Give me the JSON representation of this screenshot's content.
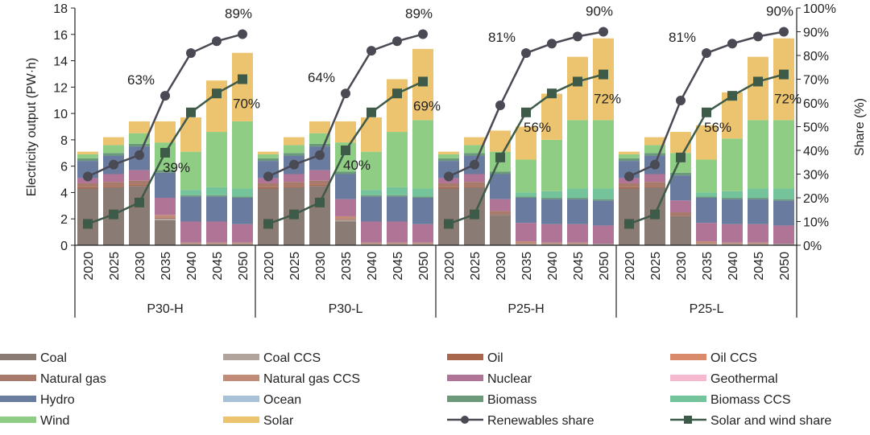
{
  "chart_data": {
    "type": "bar",
    "subtype": "stacked bar with line overlay on secondary axis",
    "ylabel": "Electricity output (PW·h)",
    "y2label": "Share (%)",
    "ylim": [
      0,
      18
    ],
    "yticks": [
      0,
      2,
      4,
      6,
      8,
      10,
      12,
      14,
      16,
      18
    ],
    "y2lim": [
      0,
      100
    ],
    "y2ticks": [
      "0%",
      "10%",
      "20%",
      "30%",
      "40%",
      "50%",
      "60%",
      "70%",
      "80%",
      "90%",
      "100%"
    ],
    "grid": false,
    "legend_position": "bottom",
    "years": [
      "2020",
      "2025",
      "2030",
      "2035",
      "2040",
      "2045",
      "2050"
    ],
    "technologies": [
      {
        "name": "Coal",
        "color": "#8a7b74"
      },
      {
        "name": "Coal CCS",
        "color": "#b1a49d"
      },
      {
        "name": "Oil",
        "color": "#a8674c"
      },
      {
        "name": "Oil CCS",
        "color": "#d98a6a"
      },
      {
        "name": "Natural gas",
        "color": "#a87a6c"
      },
      {
        "name": "Natural gas CCS",
        "color": "#c28b78"
      },
      {
        "name": "Nuclear",
        "color": "#b07497"
      },
      {
        "name": "Geothermal",
        "color": "#f5b8cf"
      },
      {
        "name": "Hydro",
        "color": "#6a7ba0"
      },
      {
        "name": "Ocean",
        "color": "#a8c0d8"
      },
      {
        "name": "Biomass",
        "color": "#6a9a7a"
      },
      {
        "name": "Biomass CCS",
        "color": "#74c39a"
      },
      {
        "name": "Wind",
        "color": "#8fcc84"
      },
      {
        "name": "Solar",
        "color": "#ecc46f"
      }
    ],
    "line_series": [
      {
        "name": "Renewables share",
        "color": "#4a4a55",
        "marker": "circle"
      },
      {
        "name": "Solar and wind share",
        "color": "#3e5a48",
        "marker": "square"
      }
    ],
    "scenarios": [
      {
        "name": "P30-H",
        "stack": {
          "Coal": [
            4.3,
            4.4,
            4.5,
            1.9,
            0,
            0,
            0
          ],
          "Coal CCS": [
            0,
            0,
            0,
            0.1,
            0.1,
            0.1,
            0.1
          ],
          "Oil": [
            0.1,
            0.1,
            0.1,
            0,
            0,
            0,
            0
          ],
          "Oil CCS": [
            0,
            0,
            0,
            0,
            0,
            0,
            0
          ],
          "Natural gas": [
            0.3,
            0.3,
            0.3,
            0.1,
            0,
            0,
            0
          ],
          "Natural gas CCS": [
            0,
            0,
            0,
            0.2,
            0.1,
            0.1,
            0.1
          ],
          "Nuclear": [
            0.4,
            0.6,
            0.8,
            1.3,
            1.6,
            1.6,
            1.4
          ],
          "Geothermal": [
            0,
            0,
            0,
            0,
            0,
            0,
            0
          ],
          "Hydro": [
            1.3,
            1.4,
            1.8,
            1.9,
            1.9,
            1.9,
            2.0
          ],
          "Ocean": [
            0,
            0,
            0,
            0,
            0,
            0,
            0
          ],
          "Biomass": [
            0.2,
            0.2,
            0.2,
            0.2,
            0.1,
            0.1,
            0.1
          ],
          "Biomass CCS": [
            0,
            0,
            0,
            0,
            0.4,
            0.6,
            0.6
          ],
          "Wind": [
            0.3,
            0.6,
            0.8,
            2.1,
            2.9,
            4.2,
            5.1
          ],
          "Solar": [
            0.2,
            0.6,
            0.9,
            1.6,
            2.6,
            3.9,
            5.2
          ]
        },
        "renewables_share": [
          29,
          34,
          38,
          63,
          81,
          86,
          89
        ],
        "solar_wind_share": [
          9,
          13,
          18,
          39,
          56,
          64,
          70
        ],
        "annotations": [
          {
            "series": "renewables_share",
            "year_index": 3,
            "text": "63%"
          },
          {
            "series": "renewables_share",
            "year_index": 6,
            "text": "89%"
          },
          {
            "series": "solar_wind_share",
            "year_index": 3,
            "text": "39%"
          },
          {
            "series": "solar_wind_share",
            "year_index": 6,
            "text": "70%"
          }
        ]
      },
      {
        "name": "P30-L",
        "stack": {
          "Coal": [
            4.3,
            4.4,
            4.5,
            1.8,
            0,
            0,
            0
          ],
          "Coal CCS": [
            0,
            0,
            0,
            0.1,
            0.1,
            0.1,
            0.1
          ],
          "Oil": [
            0.1,
            0.1,
            0.1,
            0,
            0,
            0,
            0
          ],
          "Oil CCS": [
            0,
            0,
            0,
            0,
            0,
            0,
            0
          ],
          "Natural gas": [
            0.3,
            0.3,
            0.3,
            0.1,
            0,
            0,
            0
          ],
          "Natural gas CCS": [
            0,
            0,
            0,
            0.2,
            0.1,
            0.1,
            0.1
          ],
          "Nuclear": [
            0.4,
            0.6,
            0.8,
            1.3,
            1.6,
            1.6,
            1.4
          ],
          "Geothermal": [
            0,
            0,
            0,
            0,
            0,
            0,
            0
          ],
          "Hydro": [
            1.3,
            1.4,
            1.8,
            1.9,
            1.9,
            1.9,
            2.0
          ],
          "Ocean": [
            0,
            0,
            0,
            0,
            0,
            0,
            0
          ],
          "Biomass": [
            0.2,
            0.2,
            0.2,
            0.2,
            0.1,
            0.1,
            0.1
          ],
          "Biomass CCS": [
            0,
            0,
            0,
            0,
            0.4,
            0.6,
            0.6
          ],
          "Wind": [
            0.3,
            0.6,
            0.8,
            2.2,
            2.9,
            4.2,
            5.2
          ],
          "Solar": [
            0.2,
            0.6,
            0.9,
            1.6,
            2.6,
            4.0,
            5.4
          ]
        },
        "renewables_share": [
          29,
          34,
          38,
          64,
          82,
          86,
          89
        ],
        "solar_wind_share": [
          9,
          13,
          18,
          40,
          56,
          64,
          69
        ],
        "annotations": [
          {
            "series": "renewables_share",
            "year_index": 3,
            "text": "64%"
          },
          {
            "series": "renewables_share",
            "year_index": 6,
            "text": "89%"
          },
          {
            "series": "solar_wind_share",
            "year_index": 3,
            "text": "40%"
          },
          {
            "series": "solar_wind_share",
            "year_index": 6,
            "text": "69%"
          }
        ]
      },
      {
        "name": "P25-H",
        "stack": {
          "Coal": [
            4.3,
            4.4,
            2.3,
            0,
            0,
            0,
            0
          ],
          "Coal CCS": [
            0,
            0,
            0,
            0.1,
            0.1,
            0.1,
            0.1
          ],
          "Oil": [
            0.1,
            0.1,
            0,
            0,
            0,
            0,
            0
          ],
          "Oil CCS": [
            0,
            0,
            0,
            0,
            0,
            0,
            0
          ],
          "Natural gas": [
            0.3,
            0.3,
            0.3,
            0,
            0,
            0,
            0
          ],
          "Natural gas CCS": [
            0,
            0,
            0,
            0.2,
            0.1,
            0.1,
            0
          ],
          "Nuclear": [
            0.4,
            0.6,
            0.9,
            1.4,
            1.4,
            1.4,
            1.4
          ],
          "Geothermal": [
            0,
            0,
            0,
            0,
            0,
            0,
            0
          ],
          "Hydro": [
            1.3,
            1.4,
            1.9,
            1.9,
            1.9,
            1.9,
            1.9
          ],
          "Ocean": [
            0,
            0,
            0,
            0,
            0,
            0,
            0
          ],
          "Biomass": [
            0.2,
            0.2,
            0.2,
            0.1,
            0.1,
            0.1,
            0.1
          ],
          "Biomass CCS": [
            0,
            0,
            0,
            0.3,
            0.5,
            0.7,
            0.8
          ],
          "Wind": [
            0.3,
            0.6,
            1.5,
            2.5,
            3.9,
            5.2,
            5.2
          ],
          "Solar": [
            0.2,
            0.6,
            1.6,
            2.5,
            3.5,
            4.8,
            6.2
          ]
        },
        "renewables_share": [
          29,
          34,
          59,
          81,
          85,
          88,
          90
        ],
        "solar_wind_share": [
          9,
          13,
          37,
          56,
          64,
          69,
          72
        ],
        "annotations": [
          {
            "series": "renewables_share",
            "year_index": 3,
            "text": "81%"
          },
          {
            "series": "renewables_share",
            "year_index": 6,
            "text": "90%"
          },
          {
            "series": "solar_wind_share",
            "year_index": 3,
            "text": "56%"
          },
          {
            "series": "solar_wind_share",
            "year_index": 6,
            "text": "72%"
          }
        ]
      },
      {
        "name": "P25-L",
        "stack": {
          "Coal": [
            4.3,
            4.4,
            2.2,
            0,
            0,
            0,
            0
          ],
          "Coal CCS": [
            0,
            0,
            0,
            0.1,
            0.1,
            0.1,
            0.1
          ],
          "Oil": [
            0.1,
            0.1,
            0,
            0,
            0,
            0,
            0
          ],
          "Oil CCS": [
            0,
            0,
            0,
            0,
            0,
            0,
            0
          ],
          "Natural gas": [
            0.3,
            0.3,
            0.3,
            0,
            0,
            0,
            0
          ],
          "Natural gas CCS": [
            0,
            0,
            0,
            0.2,
            0.1,
            0.1,
            0
          ],
          "Nuclear": [
            0.4,
            0.6,
            0.9,
            1.4,
            1.4,
            1.4,
            1.4
          ],
          "Geothermal": [
            0,
            0,
            0,
            0,
            0,
            0,
            0
          ],
          "Hydro": [
            1.3,
            1.4,
            1.9,
            1.9,
            1.9,
            1.9,
            1.9
          ],
          "Ocean": [
            0,
            0,
            0,
            0,
            0,
            0,
            0
          ],
          "Biomass": [
            0.2,
            0.2,
            0.2,
            0.1,
            0.1,
            0.1,
            0.1
          ],
          "Biomass CCS": [
            0,
            0,
            0,
            0.3,
            0.5,
            0.7,
            0.8
          ],
          "Wind": [
            0.3,
            0.6,
            1.5,
            2.5,
            4.0,
            5.2,
            5.2
          ],
          "Solar": [
            0.2,
            0.6,
            1.6,
            2.6,
            3.5,
            4.8,
            6.2
          ]
        },
        "renewables_share": [
          29,
          34,
          61,
          81,
          85,
          88,
          90
        ],
        "solar_wind_share": [
          9,
          13,
          37,
          56,
          63,
          69,
          72
        ],
        "annotations": [
          {
            "series": "renewables_share",
            "year_index": 3,
            "text": "81%"
          },
          {
            "series": "renewables_share",
            "year_index": 6,
            "text": "90%"
          },
          {
            "series": "solar_wind_share",
            "year_index": 3,
            "text": "56%"
          },
          {
            "series": "solar_wind_share",
            "year_index": 6,
            "text": "72%"
          }
        ]
      }
    ]
  }
}
